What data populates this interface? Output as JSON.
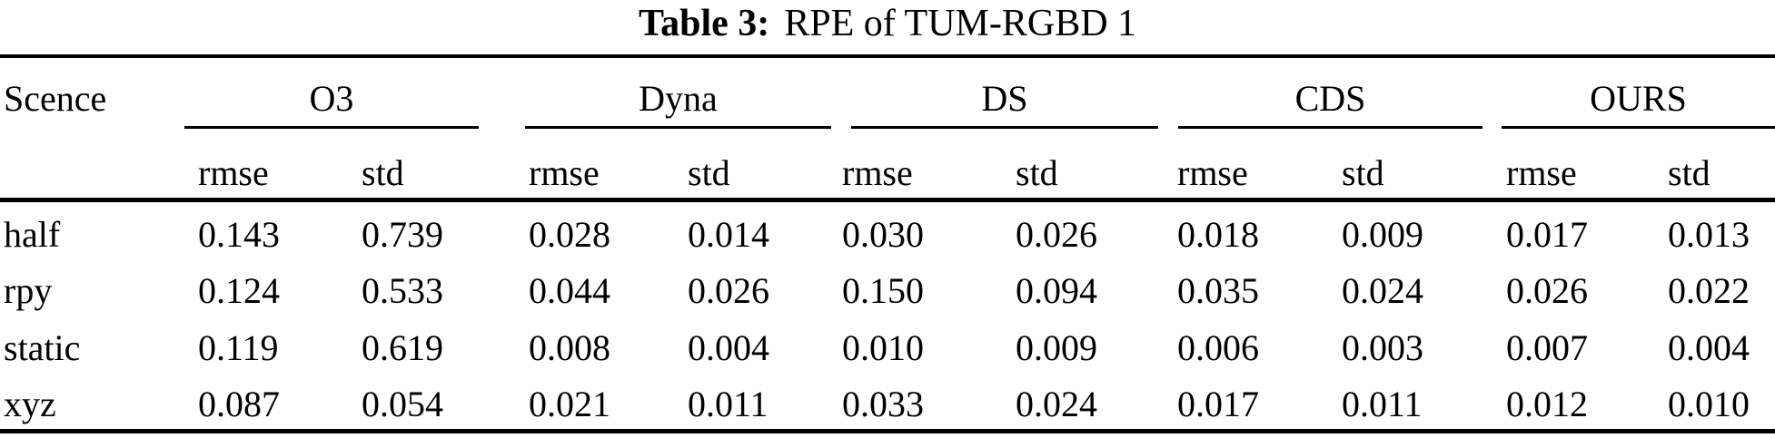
{
  "title": {
    "label": "Table 3:",
    "caption": "RPE of TUM-RGBD 1"
  },
  "table": {
    "scene_header": "Scence",
    "metrics": [
      "rmse",
      "std"
    ],
    "groups": [
      {
        "name": "O3"
      },
      {
        "name": "Dyna"
      },
      {
        "name": "DS"
      },
      {
        "name": "CDS"
      },
      {
        "name": "OURS"
      }
    ],
    "rows": [
      {
        "scene": "half",
        "values": [
          "0.143",
          "0.739",
          "0.028",
          "0.014",
          "0.030",
          "0.026",
          "0.018",
          "0.009",
          "0.017",
          "0.013"
        ]
      },
      {
        "scene": "rpy",
        "values": [
          "0.124",
          "0.533",
          "0.044",
          "0.026",
          "0.150",
          "0.094",
          "0.035",
          "0.024",
          "0.026",
          "0.022"
        ]
      },
      {
        "scene": "static",
        "values": [
          "0.119",
          "0.619",
          "0.008",
          "0.004",
          "0.010",
          "0.009",
          "0.006",
          "0.003",
          "0.007",
          "0.004"
        ]
      },
      {
        "scene": "xyz",
        "values": [
          "0.087",
          "0.054",
          "0.021",
          "0.011",
          "0.033",
          "0.024",
          "0.017",
          "0.011",
          "0.012",
          "0.010"
        ]
      }
    ],
    "colors": {
      "text": "#000000",
      "rule": "#000000",
      "background": "#ffffff"
    }
  }
}
